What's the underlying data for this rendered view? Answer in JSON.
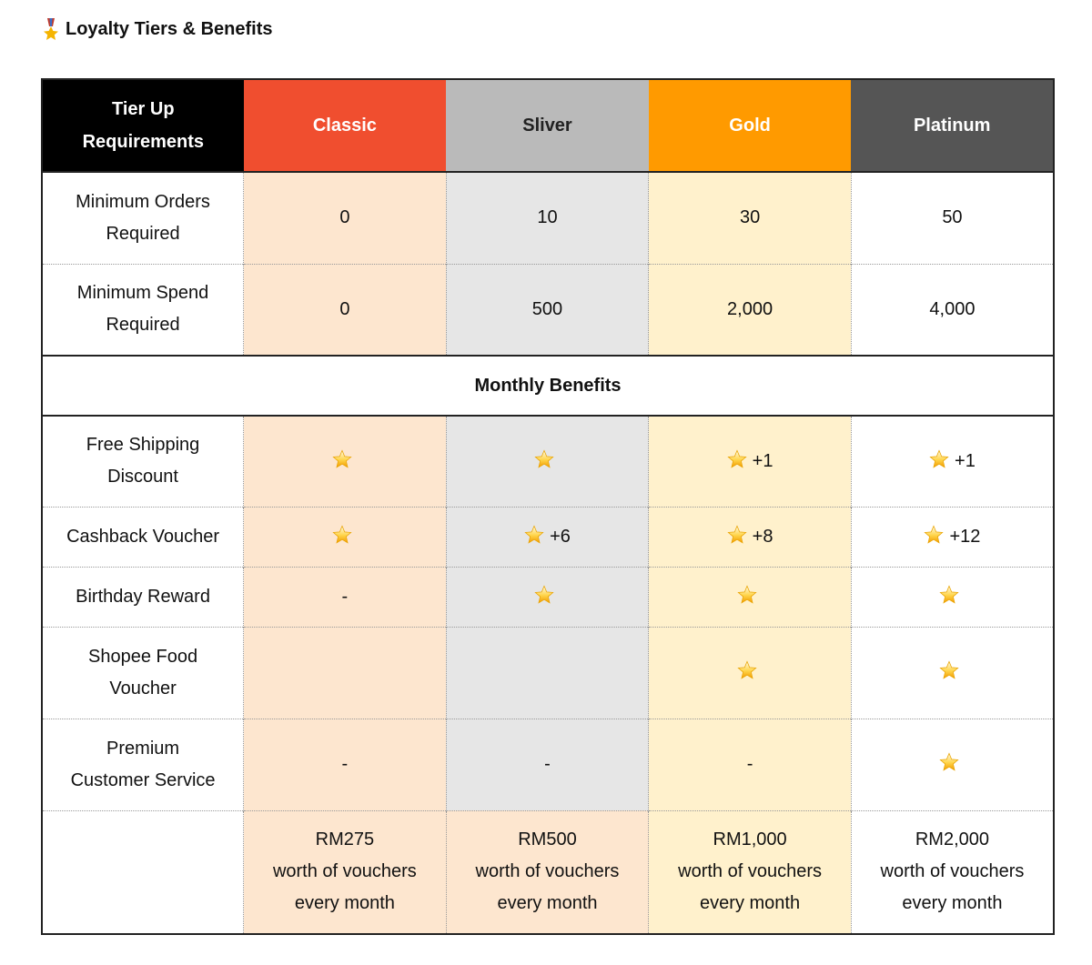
{
  "title": {
    "icon": "military-medal-icon",
    "text": "Loyalty Tiers & Benefits"
  },
  "colors": {
    "classic": "#f04e2f",
    "silver": "#bababa",
    "gold": "#ff9a00",
    "platinum": "#555555",
    "classic_bg": "#fde6cf",
    "silver_bg": "#e6e6e6",
    "gold_bg": "#fff1cc"
  },
  "header": {
    "requirements": "Tier Up\nRequirements",
    "tiers": [
      "Classic",
      "Sliver",
      "Gold",
      "Platinum"
    ]
  },
  "requirements": [
    {
      "label": "Minimum Orders Required",
      "values": [
        "0",
        "10",
        "30",
        "50"
      ]
    },
    {
      "label": "Minimum Spend Required",
      "values": [
        "0",
        "500",
        "2,000",
        "4,000"
      ]
    }
  ],
  "section": "Monthly Benefits",
  "benefits": [
    {
      "label": "Free Shipping Discount",
      "values": [
        {
          "star": true,
          "extra": ""
        },
        {
          "star": true,
          "extra": ""
        },
        {
          "star": true,
          "extra": "+1"
        },
        {
          "star": true,
          "extra": "+1"
        }
      ]
    },
    {
      "label": "Cashback Voucher",
      "values": [
        {
          "star": true,
          "extra": ""
        },
        {
          "star": true,
          "extra": "+6"
        },
        {
          "star": true,
          "extra": "+8"
        },
        {
          "star": true,
          "extra": "+12"
        }
      ]
    },
    {
      "label": "Birthday Reward",
      "values": [
        {
          "star": false,
          "extra": "-"
        },
        {
          "star": true,
          "extra": ""
        },
        {
          "star": true,
          "extra": ""
        },
        {
          "star": true,
          "extra": ""
        }
      ]
    },
    {
      "label": "Shopee Food Voucher",
      "values": [
        {
          "star": false,
          "extra": ""
        },
        {
          "star": false,
          "extra": ""
        },
        {
          "star": true,
          "extra": ""
        },
        {
          "star": true,
          "extra": ""
        }
      ]
    },
    {
      "label": "Premium Customer Service",
      "values": [
        {
          "star": false,
          "extra": "-"
        },
        {
          "star": false,
          "extra": "-"
        },
        {
          "star": false,
          "extra": "-"
        },
        {
          "star": true,
          "extra": ""
        }
      ]
    }
  ],
  "totals": [
    {
      "amount": "RM275",
      "line2": "worth of vouchers",
      "line3": "every month"
    },
    {
      "amount": "RM500",
      "line2": "worth of vouchers",
      "line3": "every month"
    },
    {
      "amount": "RM1,000",
      "line2": "worth of vouchers",
      "line3": "every month"
    },
    {
      "amount": "RM2,000",
      "line2": "worth of vouchers",
      "line3": "every month"
    }
  ]
}
